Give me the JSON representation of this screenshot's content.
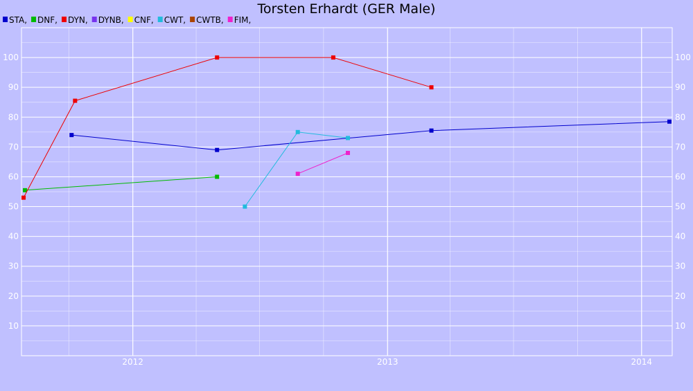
{
  "chart_data": {
    "type": "line",
    "title": "Torsten Erhardt (GER Male)",
    "xlabel": "",
    "ylabel": "",
    "ylim": [
      0,
      110
    ],
    "yticks": [
      10,
      20,
      30,
      40,
      50,
      60,
      70,
      80,
      90,
      100
    ],
    "xlim": [
      "2011-07-25",
      "2014-02-14"
    ],
    "xticks": [
      {
        "label": "2012",
        "date": "2012-01-01"
      },
      {
        "label": "2013",
        "date": "2013-01-01"
      },
      {
        "label": "2014",
        "date": "2014-01-01"
      }
    ],
    "grid": true,
    "legend_position": "top-left",
    "series": [
      {
        "name": "STA",
        "color": "#0000cc",
        "points": [
          {
            "x": "2011-10-05",
            "y": 74
          },
          {
            "x": "2012-05-01",
            "y": 69
          },
          {
            "x": "2013-03-05",
            "y": 75.5
          },
          {
            "x": "2014-02-10",
            "y": 78.5
          }
        ]
      },
      {
        "name": "DNF",
        "color": "#00bb00",
        "points": [
          {
            "x": "2011-07-30",
            "y": 55.5
          },
          {
            "x": "2012-05-01",
            "y": 60
          }
        ]
      },
      {
        "name": "DYN",
        "color": "#ee0000",
        "points": [
          {
            "x": "2011-07-28",
            "y": 53
          },
          {
            "x": "2011-10-10",
            "y": 85.5
          },
          {
            "x": "2012-05-01",
            "y": 100
          },
          {
            "x": "2012-10-15",
            "y": 100
          },
          {
            "x": "2013-03-05",
            "y": 90
          }
        ]
      },
      {
        "name": "DYNB",
        "color": "#7733ee",
        "points": []
      },
      {
        "name": "CNF",
        "color": "#ffff00",
        "points": []
      },
      {
        "name": "CWT",
        "color": "#22bbdd",
        "points": [
          {
            "x": "2012-06-10",
            "y": 50
          },
          {
            "x": "2012-08-25",
            "y": 75
          },
          {
            "x": "2012-11-05",
            "y": 73
          }
        ]
      },
      {
        "name": "CWTB",
        "color": "#aa4400",
        "points": []
      },
      {
        "name": "FIM",
        "color": "#ee22cc",
        "points": [
          {
            "x": "2012-08-25",
            "y": 61
          },
          {
            "x": "2012-11-05",
            "y": 68
          }
        ]
      }
    ]
  }
}
